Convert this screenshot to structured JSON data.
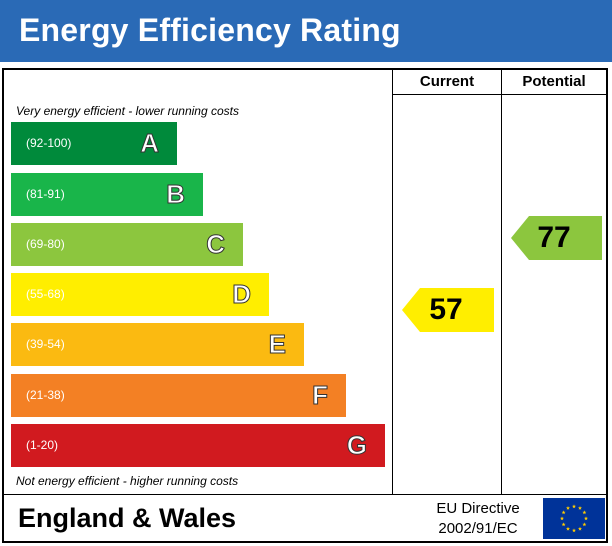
{
  "header": {
    "title": "Energy Efficiency Rating",
    "background": "#2a6ab6"
  },
  "columns": {
    "current_label": "Current",
    "potential_label": "Potential"
  },
  "notes": {
    "top": "Very energy efficient - lower running costs",
    "bottom": "Not energy efficient - higher running costs"
  },
  "chart_data": {
    "type": "bar",
    "title": "Energy Efficiency Rating",
    "bands": [
      {
        "letter": "A",
        "range": "(92-100)",
        "color": "#008a3b"
      },
      {
        "letter": "B",
        "range": "(81-91)",
        "color": "#19b54a"
      },
      {
        "letter": "C",
        "range": "(69-80)",
        "color": "#8cc63e"
      },
      {
        "letter": "D",
        "range": "(55-68)",
        "color": "#ffee00"
      },
      {
        "letter": "E",
        "range": "(39-54)",
        "color": "#fbba11"
      },
      {
        "letter": "F",
        "range": "(21-38)",
        "color": "#f38024"
      },
      {
        "letter": "G",
        "range": "(1-20)",
        "color": "#d11a1f"
      }
    ],
    "current": {
      "value": 57,
      "band": "D",
      "color": "#ffee00"
    },
    "potential": {
      "value": 77,
      "band": "C",
      "color": "#8cc63e"
    }
  },
  "footer": {
    "region": "England & Wales",
    "directive_line1": "EU Directive",
    "directive_line2": "2002/91/EC",
    "flag_icon": "eu-flag-icon"
  }
}
